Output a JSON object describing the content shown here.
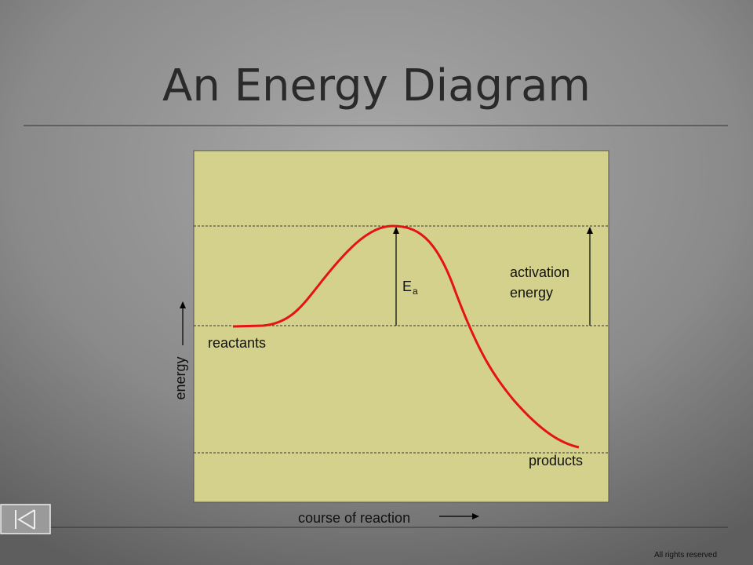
{
  "title": "An Energy Diagram",
  "diagram": {
    "ea_symbol": "E",
    "ea_subscript": "a",
    "activation_label": [
      "activation",
      "energy"
    ],
    "reactants": "reactants",
    "products": "products",
    "y_axis_label": "energy",
    "x_axis_label": "course of reaction"
  },
  "footer": {
    "rights": "All rights reserved"
  }
}
